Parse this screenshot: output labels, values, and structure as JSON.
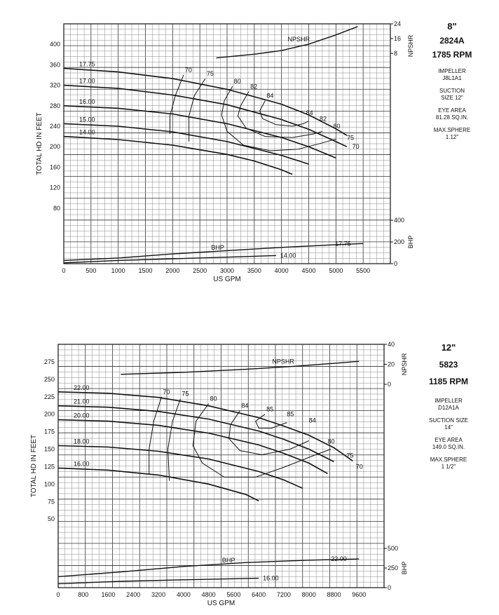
{
  "chart_data": [
    {
      "type": "line",
      "ylabel": "TOTAL HD IN FEET",
      "xlabel": "US GPM",
      "xlim": [
        0,
        6000
      ],
      "ylim": [
        40,
        440
      ],
      "x_ticks": [
        0,
        500,
        1000,
        1500,
        2000,
        2500,
        3000,
        3500,
        4000,
        4500,
        5000,
        5500
      ],
      "x_tick_labels": [
        "0",
        "500",
        "1000",
        "1500",
        "2000",
        "2500",
        "3000",
        "3500",
        "4000",
        "4500",
        "5000",
        "5500"
      ],
      "y_ticks": [
        80,
        120,
        160,
        200,
        240,
        280,
        320,
        360,
        400
      ],
      "y_tick_labels": [
        "80",
        "120",
        "160",
        "200",
        "240",
        "280",
        "320",
        "360",
        "400"
      ],
      "npsh_axis": {
        "label": "NPSHR",
        "ticks": [
          8,
          16,
          24
        ],
        "tick_labels": [
          "8",
          "16",
          "24"
        ],
        "range": [
          0,
          24
        ]
      },
      "bhp_axis": {
        "label": "BHP",
        "ticks": [
          0,
          200,
          400
        ],
        "tick_labels": [
          "0",
          "200",
          "400"
        ],
        "range": [
          0,
          400
        ]
      },
      "grid": true,
      "impeller_curves": [
        {
          "name": "17.75",
          "points": [
            [
              0,
              353
            ],
            [
              1000,
              346
            ],
            [
              2000,
              333
            ],
            [
              3000,
              312
            ],
            [
              4000,
              283
            ],
            [
              4500,
              262
            ],
            [
              5000,
              235
            ],
            [
              5200,
              222
            ]
          ]
        },
        {
          "name": "17.00",
          "points": [
            [
              0,
              320
            ],
            [
              1000,
              314
            ],
            [
              2000,
              301
            ],
            [
              3000,
              282
            ],
            [
              4000,
              253
            ],
            [
              4500,
              234
            ],
            [
              5000,
              210
            ],
            [
              5200,
              200
            ]
          ]
        },
        {
          "name": "16.00",
          "points": [
            [
              0,
              280
            ],
            [
              1000,
              275
            ],
            [
              2000,
              264
            ],
            [
              3000,
              245
            ],
            [
              4000,
              218
            ],
            [
              4500,
              200
            ],
            [
              5000,
              178
            ]
          ]
        },
        {
          "name": "15.00",
          "points": [
            [
              0,
              245
            ],
            [
              1000,
              240
            ],
            [
              2000,
              229
            ],
            [
              3000,
              210
            ],
            [
              4000,
              183
            ],
            [
              4500,
              166
            ]
          ]
        },
        {
          "name": "14.00",
          "points": [
            [
              0,
              220
            ],
            [
              1000,
              214
            ],
            [
              2000,
              203
            ],
            [
              3000,
              185
            ],
            [
              3500,
              172
            ],
            [
              4000,
              155
            ],
            [
              4200,
              146
            ]
          ]
        }
      ],
      "efficiency_curves": [
        {
          "name": "70",
          "points": [
            [
              2200,
              340
            ],
            [
              2050,
              300
            ],
            [
              1950,
              260
            ],
            [
              1950,
              225
            ]
          ]
        },
        {
          "name": "75",
          "points": [
            [
              2600,
              333
            ],
            [
              2400,
              300
            ],
            [
              2300,
              260
            ],
            [
              2300,
              210
            ]
          ]
        },
        {
          "name": "80",
          "points": [
            [
              3100,
              318
            ],
            [
              2950,
              290
            ],
            [
              2900,
              262
            ],
            [
              3000,
              230
            ],
            [
              3300,
              203
            ],
            [
              3800,
              192
            ],
            [
              4300,
              195
            ],
            [
              4700,
              206
            ],
            [
              5000,
              215
            ]
          ]
        },
        {
          "name": "82",
          "points": [
            [
              3400,
              308
            ],
            [
              3250,
              280
            ],
            [
              3200,
              260
            ],
            [
              3350,
              236
            ],
            [
              3700,
              220
            ],
            [
              4200,
              218
            ],
            [
              4600,
              225
            ],
            [
              4750,
              230
            ]
          ]
        },
        {
          "name": "84",
          "points": [
            [
              3700,
              290
            ],
            [
              3600,
              270
            ],
            [
              3650,
              255
            ],
            [
              3900,
              243
            ],
            [
              4200,
              240
            ],
            [
              4400,
              245
            ],
            [
              4500,
              250
            ]
          ]
        }
      ],
      "efficiency_outer_right": [
        {
          "name": "84",
          "at": [
            4450,
            262
          ]
        },
        {
          "name": "82",
          "at": [
            4700,
            250
          ]
        },
        {
          "name": "80",
          "at": [
            4950,
            236
          ]
        },
        {
          "name": "75",
          "at": [
            5200,
            213
          ]
        },
        {
          "name": "70",
          "at": [
            5300,
            196
          ]
        }
      ],
      "npshr_curve": {
        "name": "NPSHR",
        "points": [
          [
            2800,
            5.5
          ],
          [
            3500,
            7.5
          ],
          [
            4000,
            9.5
          ],
          [
            4500,
            13
          ],
          [
            5000,
            18
          ],
          [
            5400,
            22.5
          ]
        ]
      },
      "bhp_curves": [
        {
          "name": "BHP",
          "points": [
            [
              0,
              30
            ],
            [
              1000,
              52
            ],
            [
              2000,
              90
            ],
            [
              3000,
              120
            ],
            [
              4000,
              150
            ],
            [
              5000,
              175
            ],
            [
              5500,
              185
            ]
          ]
        },
        {
          "name": "17.75",
          "points": [
            [
              0,
              30
            ],
            [
              1000,
              52
            ],
            [
              2000,
              90
            ],
            [
              3000,
              120
            ],
            [
              4000,
              150
            ],
            [
              5000,
              175
            ],
            [
              5500,
              185
            ]
          ]
        },
        {
          "name": "14.00",
          "points": [
            [
              0,
              8
            ],
            [
              1000,
              30
            ],
            [
              2000,
              45
            ],
            [
              3000,
              60
            ],
            [
              3900,
              75
            ]
          ]
        }
      ],
      "labels": {
        "bhp": "BHP",
        "bhp_17": "17.75",
        "bhp_14": "14.00",
        "npshr": "NPSHR"
      }
    },
    {
      "type": "line",
      "ylabel": "TOTAL HD IN FEET",
      "xlabel": "US GPM",
      "xlim": [
        0,
        10400
      ],
      "ylim": [
        0,
        300
      ],
      "x_ticks": [
        0,
        800,
        1600,
        2400,
        3200,
        4000,
        4800,
        5600,
        6400,
        7200,
        8000,
        8800,
        9600
      ],
      "x_tick_labels": [
        "0",
        "800",
        "1600",
        "2400",
        "3200",
        "4000",
        "4800",
        "5600",
        "6400",
        "7200",
        "8000",
        "8800",
        "9600"
      ],
      "y_ticks": [
        50,
        75,
        100,
        125,
        150,
        175,
        200,
        225,
        250,
        275
      ],
      "y_tick_labels": [
        "50",
        "75",
        "100",
        "125",
        "150",
        "175",
        "200",
        "225",
        "250",
        "275"
      ],
      "npsh_axis": {
        "label": "NPSHR",
        "ticks": [
          0,
          20,
          40
        ],
        "tick_labels": [
          "0",
          "20",
          "40"
        ],
        "range": [
          0,
          40
        ]
      },
      "bhp_axis": {
        "label": "BHP",
        "ticks": [
          0,
          250,
          500
        ],
        "tick_labels": [
          "0",
          "250",
          "500"
        ],
        "range": [
          0,
          500
        ]
      },
      "grid": true,
      "impeller_curves": [
        {
          "name": "22.00",
          "points": [
            [
              0,
              232
            ],
            [
              1600,
              230
            ],
            [
              3200,
              224
            ],
            [
              4800,
              212
            ],
            [
              6400,
              195
            ],
            [
              7200,
              183
            ],
            [
              8000,
              170
            ],
            [
              8800,
              152
            ],
            [
              9400,
              133
            ]
          ]
        },
        {
          "name": "21.00",
          "points": [
            [
              0,
              212
            ],
            [
              1600,
              210
            ],
            [
              3200,
              204
            ],
            [
              4800,
              193
            ],
            [
              6400,
              176
            ],
            [
              7200,
              164
            ],
            [
              8000,
              150
            ],
            [
              8800,
              132
            ]
          ]
        },
        {
          "name": "20.00",
          "points": [
            [
              0,
              192
            ],
            [
              1600,
              190
            ],
            [
              3200,
              184
            ],
            [
              4800,
              173
            ],
            [
              6400,
              156
            ],
            [
              7200,
              144
            ],
            [
              8000,
              130
            ],
            [
              8600,
              115
            ]
          ]
        },
        {
          "name": "18.00",
          "points": [
            [
              0,
              155
            ],
            [
              1600,
              153
            ],
            [
              3200,
              147
            ],
            [
              4800,
              136
            ],
            [
              6400,
              118
            ],
            [
              7200,
              106
            ],
            [
              7800,
              94
            ]
          ]
        },
        {
          "name": "16.00",
          "points": [
            [
              0,
              123
            ],
            [
              1600,
              120
            ],
            [
              3200,
              113
            ],
            [
              4800,
              100
            ],
            [
              6000,
              85
            ],
            [
              6400,
              76
            ]
          ]
        }
      ],
      "efficiency_curves": [
        {
          "name": "70",
          "points": [
            [
              3300,
              225
            ],
            [
              3050,
              190
            ],
            [
              2900,
              150
            ],
            [
              2900,
              115
            ]
          ]
        },
        {
          "name": "75",
          "points": [
            [
              3900,
              222
            ],
            [
              3650,
              190
            ],
            [
              3500,
              150
            ],
            [
              3550,
              105
            ]
          ]
        },
        {
          "name": "80",
          "points": [
            [
              4800,
              215
            ],
            [
              4400,
              190
            ],
            [
              4300,
              155
            ],
            [
              4600,
              130
            ],
            [
              5300,
              110
            ],
            [
              6300,
              110
            ],
            [
              7200,
              124
            ],
            [
              8100,
              140
            ],
            [
              8700,
              150
            ]
          ]
        },
        {
          "name": "84",
          "points": [
            [
              5800,
              205
            ],
            [
              5500,
              185
            ],
            [
              5450,
              165
            ],
            [
              5800,
              148
            ],
            [
              6500,
              142
            ],
            [
              7400,
              150
            ],
            [
              8000,
              162
            ]
          ]
        },
        {
          "name": "85",
          "points": [
            [
              6600,
              200
            ],
            [
              6300,
              190
            ],
            [
              6400,
              180
            ],
            [
              6800,
              180
            ],
            [
              7300,
              188
            ]
          ]
        }
      ],
      "efficiency_outer_right": [
        {
          "name": "85",
          "at": [
            7300,
            197
          ]
        },
        {
          "name": "84",
          "at": [
            8000,
            188
          ]
        },
        {
          "name": "80",
          "at": [
            8600,
            158
          ]
        },
        {
          "name": "75",
          "at": [
            9200,
            138
          ]
        },
        {
          "name": "70",
          "at": [
            9500,
            122
          ]
        }
      ],
      "npshr_curve": {
        "name": "NPSHR",
        "points": [
          [
            2000,
            10
          ],
          [
            4000,
            12
          ],
          [
            6000,
            15
          ],
          [
            7500,
            18
          ],
          [
            9000,
            21.5
          ],
          [
            9600,
            23
          ]
        ]
      },
      "bhp_curves": [
        {
          "name": "BHP",
          "points": [
            [
              0,
              140
            ],
            [
              2000,
              200
            ],
            [
              4000,
              270
            ],
            [
              6000,
              320
            ],
            [
              8000,
              350
            ],
            [
              9600,
              365
            ]
          ]
        },
        {
          "name": "22.00",
          "points": [
            [
              0,
              140
            ],
            [
              2000,
              200
            ],
            [
              4000,
              270
            ],
            [
              6000,
              320
            ],
            [
              8000,
              350
            ],
            [
              9600,
              365
            ]
          ]
        },
        {
          "name": "16.00",
          "points": [
            [
              0,
              50
            ],
            [
              2000,
              80
            ],
            [
              4000,
              100
            ],
            [
              6400,
              120
            ]
          ]
        }
      ],
      "labels": {
        "bhp": "BHP",
        "bhp_hi": "22.00",
        "bhp_lo": "16.00",
        "npshr": "NPSHR"
      }
    }
  ],
  "panels": [
    {
      "size": "8\"",
      "model": "2824A",
      "rpm": "1785 RPM",
      "impeller_label": "IMPELLER",
      "impeller": "J8L1A1",
      "suction_label": "SUCTION",
      "suction": "SIZE 12\"",
      "eye_label": "EYE AREA",
      "eye": "81.28 SQ.IN.",
      "sphere_label": "MAX.SPHERE",
      "sphere": "1.12\""
    },
    {
      "size": "12\"",
      "model": "5823",
      "rpm": "1185 RPM",
      "impeller_label": "IMPELLER",
      "impeller": "D12A1A",
      "suction_label": "SUCTION SIZE",
      "suction": "14\"",
      "eye_label": "EYE AREA",
      "eye": "149.0 SQ.IN.",
      "sphere_label": "MAX.SPHERE",
      "sphere": "1 1/2\""
    }
  ]
}
